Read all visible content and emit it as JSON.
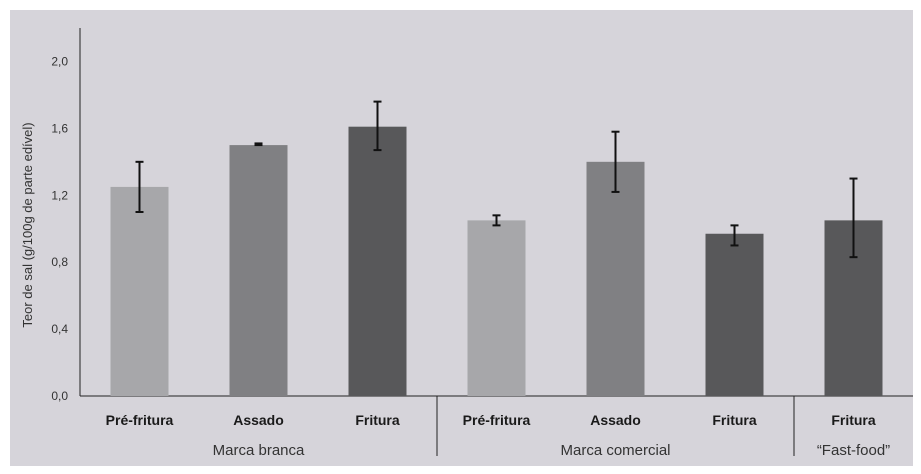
{
  "chart_data": {
    "type": "bar",
    "ylabel": "Teor de sal (g/100g de parte edível)",
    "ylim": [
      0,
      2.2
    ],
    "yticks": [
      "0,0",
      "0,4",
      "0,8",
      "1,2",
      "1,6",
      "2,0"
    ],
    "ytick_values": [
      0,
      0.4,
      0.8,
      1.2,
      1.6,
      2.0
    ],
    "groups": [
      {
        "name": "Marca branca",
        "bars": [
          {
            "category": "Pré-fritura",
            "value": 1.25,
            "err_low": 1.1,
            "err_high": 1.4,
            "color": "#a7a7aa"
          },
          {
            "category": "Assado",
            "value": 1.5,
            "err_low": 1.5,
            "err_high": 1.51,
            "color": "#808083"
          },
          {
            "category": "Fritura",
            "value": 1.61,
            "err_low": 1.47,
            "err_high": 1.76,
            "color": "#58585a"
          }
        ]
      },
      {
        "name": "Marca comercial",
        "bars": [
          {
            "category": "Pré-fritura",
            "value": 1.05,
            "err_low": 1.02,
            "err_high": 1.08,
            "color": "#a7a7aa"
          },
          {
            "category": "Assado",
            "value": 1.4,
            "err_low": 1.22,
            "err_high": 1.58,
            "color": "#808083"
          },
          {
            "category": "Fritura",
            "value": 0.97,
            "err_low": 0.9,
            "err_high": 1.02,
            "color": "#58585a"
          }
        ]
      },
      {
        "name": "“Fast-food”",
        "bars": [
          {
            "category": "Fritura",
            "value": 1.05,
            "err_low": 0.83,
            "err_high": 1.3,
            "color": "#58585a"
          }
        ]
      }
    ],
    "grid": false,
    "legend": "none"
  }
}
